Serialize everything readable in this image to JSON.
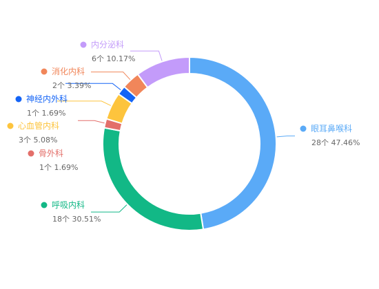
{
  "chart_data": {
    "type": "pie",
    "title": "",
    "donut": true,
    "grid": false,
    "legend": "none",
    "categories": [
      "眼耳鼻喉科",
      "呼吸内科",
      "骨外科",
      "心血管内科",
      "神经内外科",
      "消化内科",
      "内分泌科"
    ],
    "counts": [
      28,
      18,
      1,
      3,
      1,
      2,
      6
    ],
    "count_labels": [
      "28个",
      "18个",
      "1个",
      "3个",
      "1个",
      "2个",
      "6个"
    ],
    "percent_labels": [
      "47.46%",
      "30.51%",
      "1.69%",
      "5.08%",
      "1.69%",
      "3.39%",
      "10.17%"
    ],
    "colors": [
      "#5AAAF7",
      "#12B886",
      "#E36F6A",
      "#FDC43D",
      "#1464F6",
      "#F1865A",
      "#C39BFA"
    ]
  }
}
